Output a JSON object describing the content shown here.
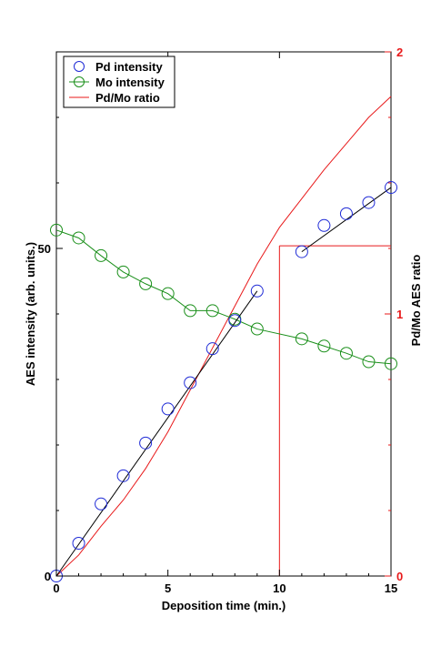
{
  "chart_data": {
    "type": "line",
    "xlabel": "Deposition time (min.)",
    "ylabel": "AES intensity (arb. units.)",
    "y2label": "Pd/Mo AES ratio",
    "xlim": [
      0,
      15
    ],
    "ylim": [
      0,
      80
    ],
    "y2lim": [
      0,
      2
    ],
    "x_ticks": [
      0,
      5,
      10,
      15
    ],
    "y_ticks_labeled": [
      0,
      50
    ],
    "y2_ticks": [
      0,
      1,
      2
    ],
    "legend_position": "top-left",
    "colors": {
      "pd": "#1f2bd6",
      "mo": "#1a8f1a",
      "ratio": "#e8191a",
      "fit": "#000000"
    },
    "series": [
      {
        "name": "Pd intensity",
        "marker": "open-circle",
        "axis": "left",
        "x": [
          0,
          1,
          2,
          3,
          4,
          5,
          6,
          7,
          8,
          9,
          11,
          12,
          13,
          14,
          15
        ],
        "y": [
          0,
          5,
          11,
          15.3,
          20.3,
          25.5,
          29.5,
          34.7,
          39,
          43.5,
          49.5,
          53.5,
          55.3,
          57,
          59.3
        ]
      },
      {
        "name": "Mo intensity",
        "marker": "open-circle-line",
        "axis": "left",
        "x": [
          0,
          1,
          2,
          3,
          4,
          5,
          6,
          7,
          8,
          9,
          11,
          12,
          13,
          14,
          15
        ],
        "y": [
          52.8,
          51.6,
          48.9,
          46.4,
          44.6,
          43.1,
          40.5,
          40.5,
          39.2,
          37.7,
          36.2,
          35.1,
          34,
          32.7,
          32.4
        ]
      },
      {
        "name": "Pd/Mo ratio",
        "marker": "line",
        "axis": "right",
        "x": [
          0,
          1,
          2,
          3,
          4,
          5,
          6,
          7,
          8,
          9,
          10,
          11,
          12,
          13,
          14,
          15
        ],
        "y": [
          0,
          0.08,
          0.19,
          0.29,
          0.41,
          0.55,
          0.71,
          0.87,
          1.03,
          1.19,
          1.33,
          1.44,
          1.55,
          1.65,
          1.75,
          1.83
        ]
      }
    ],
    "fit_lines": [
      {
        "x": [
          0,
          9
        ],
        "y": [
          0,
          43.5
        ]
      },
      {
        "x": [
          11,
          15
        ],
        "y": [
          49.5,
          59.3
        ]
      }
    ],
    "reference_lines": {
      "vertical_x": 10,
      "horizontal_y2": 1.26,
      "horizontal_x_range": [
        10,
        15
      ]
    }
  }
}
